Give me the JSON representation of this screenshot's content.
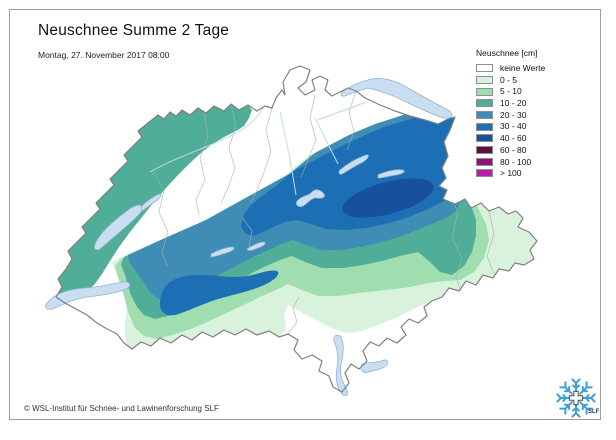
{
  "header": {
    "title": "Neuschnee Summe 2 Tage",
    "subtitle": "Montag, 27. November 2017 08:00"
  },
  "legend": {
    "title": "Neuschnee [cm]",
    "items": [
      {
        "label": "keine Werte",
        "color": "#FFFFFF"
      },
      {
        "label": "0 - 5",
        "color": "#D9F2DB"
      },
      {
        "label": "5 - 10",
        "color": "#A0DEAF"
      },
      {
        "label": "10 - 20",
        "color": "#4FAD98"
      },
      {
        "label": "20 - 30",
        "color": "#3F8DB4"
      },
      {
        "label": "30 - 40",
        "color": "#1D6FB5"
      },
      {
        "label": "40 - 60",
        "color": "#17519C"
      },
      {
        "label": "60 - 80",
        "color": "#630C3B"
      },
      {
        "label": "80 - 100",
        "color": "#8F1175"
      },
      {
        "label": "> 100",
        "color": "#B71DA8"
      }
    ]
  },
  "map": {
    "no_data_color": "#FFFFFF",
    "lake_color": "#C9DFF1",
    "lake_border_color": "#8FB4D8",
    "country_border_color": "#7F7F7F",
    "canton_border_color": "#A9B0B0",
    "river_color": "#BFD9EE"
  },
  "footer": {
    "copyright": "© WSL-Institut für Schnee- und Lawinenforschung SLF"
  },
  "logo": {
    "label": "SLF",
    "color": "#3D9FD6"
  }
}
